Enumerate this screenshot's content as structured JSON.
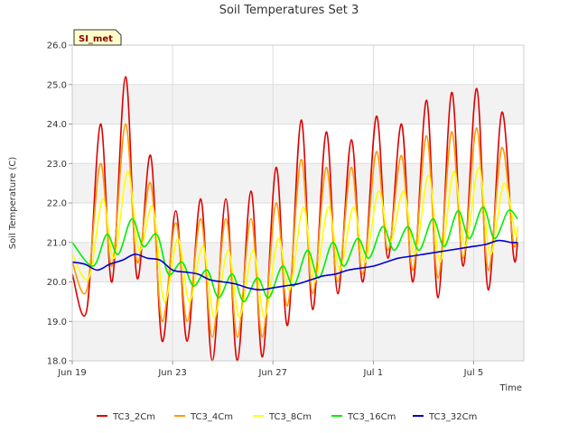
{
  "chart_data": {
    "type": "line",
    "title": "Soil Temperatures Set 3",
    "xlabel": "Time",
    "ylabel": "Soil Temperature (C)",
    "annotation": "SI_met",
    "xlim": [
      "2023-06-19",
      "2023-07-07"
    ],
    "ylim": [
      18.0,
      26.0
    ],
    "yticks": [
      18.0,
      19.0,
      20.0,
      21.0,
      22.0,
      23.0,
      24.0,
      25.0,
      26.0
    ],
    "yticklabels": [
      "18.0",
      "19.0",
      "20.0",
      "21.0",
      "22.0",
      "23.0",
      "24.0",
      "25.0",
      "26.0"
    ],
    "xticks": [
      "2023-06-19",
      "2023-06-23",
      "2023-06-27",
      "2023-07-01",
      "2023-07-05"
    ],
    "xticklabels": [
      "Jun 19",
      "Jun 23",
      "Jun 27",
      "Jul 1",
      "Jul 5"
    ],
    "grid": true,
    "background_bands": true,
    "legend_position": "bottom",
    "series": [
      {
        "name": "TC3_2Cm",
        "color": "#dd0000",
        "x": [
          "2023-06-19 00:00",
          "2023-06-19 14:00",
          "2023-06-20 03:00",
          "2023-06-20 14:00",
          "2023-06-21 03:00",
          "2023-06-21 14:00",
          "2023-06-22 03:00",
          "2023-06-22 14:00",
          "2023-06-23 03:00",
          "2023-06-23 14:00",
          "2023-06-24 03:00",
          "2023-06-24 14:00",
          "2023-06-25 03:00",
          "2023-06-25 14:00",
          "2023-06-26 03:00",
          "2023-06-26 14:00",
          "2023-06-27 03:00",
          "2023-06-27 14:00",
          "2023-06-28 03:00",
          "2023-06-28 14:00",
          "2023-06-29 03:00",
          "2023-06-29 14:00",
          "2023-06-30 03:00",
          "2023-06-30 14:00",
          "2023-07-01 03:00",
          "2023-07-01 14:00",
          "2023-07-02 03:00",
          "2023-07-02 14:00",
          "2023-07-03 03:00",
          "2023-07-03 14:00",
          "2023-07-04 03:00",
          "2023-07-04 14:00",
          "2023-07-05 03:00",
          "2023-07-05 14:00",
          "2023-07-06 03:00",
          "2023-07-06 14:00",
          "2023-07-06 18:00"
        ],
        "y": [
          20.2,
          19.3,
          24.0,
          20.0,
          25.2,
          20.1,
          23.2,
          18.5,
          21.8,
          18.5,
          22.1,
          18.0,
          22.1,
          18.0,
          22.3,
          18.1,
          22.9,
          18.9,
          24.1,
          19.3,
          23.8,
          19.7,
          23.6,
          20.0,
          24.2,
          20.6,
          24.0,
          20.0,
          24.6,
          19.6,
          24.8,
          20.4,
          24.9,
          19.8,
          24.3,
          20.7,
          21.0
        ]
      },
      {
        "name": "TC3_4Cm",
        "color": "#ff9900",
        "x": [
          "2023-06-19 00:00",
          "2023-06-19 14:00",
          "2023-06-20 03:00",
          "2023-06-20 14:00",
          "2023-06-21 03:00",
          "2023-06-21 14:00",
          "2023-06-22 03:00",
          "2023-06-22 14:00",
          "2023-06-23 03:00",
          "2023-06-23 14:00",
          "2023-06-24 03:00",
          "2023-06-24 14:00",
          "2023-06-25 03:00",
          "2023-06-25 14:00",
          "2023-06-26 03:00",
          "2023-06-26 14:00",
          "2023-06-27 03:00",
          "2023-06-27 14:00",
          "2023-06-28 03:00",
          "2023-06-28 14:00",
          "2023-06-29 03:00",
          "2023-06-29 14:00",
          "2023-06-30 03:00",
          "2023-06-30 14:00",
          "2023-07-01 03:00",
          "2023-07-01 14:00",
          "2023-07-02 03:00",
          "2023-07-02 14:00",
          "2023-07-03 03:00",
          "2023-07-03 14:00",
          "2023-07-04 03:00",
          "2023-07-04 14:00",
          "2023-07-05 03:00",
          "2023-07-05 14:00",
          "2023-07-06 03:00",
          "2023-07-06 14:00",
          "2023-07-06 18:00"
        ],
        "y": [
          20.5,
          19.8,
          23.0,
          20.4,
          24.0,
          20.5,
          22.5,
          19.0,
          21.5,
          19.0,
          21.6,
          18.6,
          21.6,
          18.6,
          21.6,
          18.6,
          22.0,
          19.4,
          23.1,
          19.7,
          22.9,
          20.0,
          22.9,
          20.2,
          23.3,
          20.8,
          23.2,
          20.3,
          23.7,
          20.1,
          23.8,
          20.6,
          23.9,
          20.3,
          23.4,
          21.0,
          21.3
        ]
      },
      {
        "name": "TC3_8Cm",
        "color": "#ffff00",
        "x": [
          "2023-06-19 00:00",
          "2023-06-19 16:00",
          "2023-06-20 05:00",
          "2023-06-20 16:00",
          "2023-06-21 05:00",
          "2023-06-21 16:00",
          "2023-06-22 05:00",
          "2023-06-22 16:00",
          "2023-06-23 05:00",
          "2023-06-23 16:00",
          "2023-06-24 05:00",
          "2023-06-24 16:00",
          "2023-06-25 05:00",
          "2023-06-25 16:00",
          "2023-06-26 05:00",
          "2023-06-26 16:00",
          "2023-06-27 05:00",
          "2023-06-27 16:00",
          "2023-06-28 05:00",
          "2023-06-28 16:00",
          "2023-06-29 05:00",
          "2023-06-29 16:00",
          "2023-06-30 05:00",
          "2023-06-30 16:00",
          "2023-07-01 05:00",
          "2023-07-01 16:00",
          "2023-07-02 05:00",
          "2023-07-02 16:00",
          "2023-07-03 05:00",
          "2023-07-03 16:00",
          "2023-07-04 05:00",
          "2023-07-04 16:00",
          "2023-07-05 05:00",
          "2023-07-05 16:00",
          "2023-07-06 05:00",
          "2023-07-06 16:00",
          "2023-07-06 18:00"
        ],
        "y": [
          20.7,
          20.1,
          22.1,
          20.6,
          22.8,
          20.8,
          21.9,
          19.5,
          21.1,
          19.5,
          20.9,
          19.1,
          20.8,
          19.1,
          20.8,
          19.1,
          21.1,
          19.8,
          21.9,
          20.0,
          21.9,
          20.3,
          21.9,
          20.5,
          22.3,
          21.0,
          22.3,
          20.7,
          22.7,
          20.5,
          22.8,
          20.9,
          22.9,
          20.7,
          22.5,
          21.2,
          21.4
        ]
      },
      {
        "name": "TC3_16Cm",
        "color": "#00ee00",
        "x": [
          "2023-06-19 00:00",
          "2023-06-19 20:00",
          "2023-06-20 09:00",
          "2023-06-20 20:00",
          "2023-06-21 09:00",
          "2023-06-21 20:00",
          "2023-06-22 09:00",
          "2023-06-22 20:00",
          "2023-06-23 09:00",
          "2023-06-23 20:00",
          "2023-06-24 09:00",
          "2023-06-24 20:00",
          "2023-06-25 09:00",
          "2023-06-25 20:00",
          "2023-06-26 09:00",
          "2023-06-26 20:00",
          "2023-06-27 09:00",
          "2023-06-27 20:00",
          "2023-06-28 09:00",
          "2023-06-28 20:00",
          "2023-06-29 09:00",
          "2023-06-29 20:00",
          "2023-06-30 09:00",
          "2023-06-30 20:00",
          "2023-07-01 09:00",
          "2023-07-01 20:00",
          "2023-07-02 09:00",
          "2023-07-02 20:00",
          "2023-07-03 09:00",
          "2023-07-03 20:00",
          "2023-07-04 09:00",
          "2023-07-04 20:00",
          "2023-07-05 09:00",
          "2023-07-05 20:00",
          "2023-07-06 09:00",
          "2023-07-06 18:00"
        ],
        "y": [
          21.0,
          20.4,
          21.2,
          20.7,
          21.6,
          20.9,
          21.2,
          20.2,
          20.5,
          19.9,
          20.3,
          19.6,
          20.2,
          19.5,
          20.1,
          19.6,
          20.4,
          19.9,
          20.8,
          20.1,
          21.0,
          20.4,
          21.1,
          20.6,
          21.4,
          20.8,
          21.4,
          20.8,
          21.6,
          20.9,
          21.8,
          21.1,
          21.9,
          21.1,
          21.8,
          21.6
        ]
      },
      {
        "name": "TC3_32Cm",
        "color": "#0000cc",
        "x": [
          "2023-06-19 00:00",
          "2023-06-19 12:00",
          "2023-06-20 00:00",
          "2023-06-20 12:00",
          "2023-06-21 00:00",
          "2023-06-21 12:00",
          "2023-06-22 00:00",
          "2023-06-22 12:00",
          "2023-06-23 00:00",
          "2023-06-23 12:00",
          "2023-06-24 00:00",
          "2023-06-24 12:00",
          "2023-06-25 00:00",
          "2023-06-25 12:00",
          "2023-06-26 00:00",
          "2023-06-26 12:00",
          "2023-06-27 00:00",
          "2023-06-27 12:00",
          "2023-06-28 00:00",
          "2023-06-28 12:00",
          "2023-06-29 00:00",
          "2023-06-29 12:00",
          "2023-06-30 00:00",
          "2023-06-30 12:00",
          "2023-07-01 00:00",
          "2023-07-01 12:00",
          "2023-07-02 00:00",
          "2023-07-02 12:00",
          "2023-07-03 00:00",
          "2023-07-03 12:00",
          "2023-07-04 00:00",
          "2023-07-04 12:00",
          "2023-07-05 00:00",
          "2023-07-05 12:00",
          "2023-07-06 00:00",
          "2023-07-06 12:00",
          "2023-07-06 18:00"
        ],
        "y": [
          20.5,
          20.45,
          20.3,
          20.45,
          20.55,
          20.7,
          20.6,
          20.55,
          20.3,
          20.25,
          20.2,
          20.05,
          20.0,
          19.95,
          19.85,
          19.8,
          19.85,
          19.9,
          19.95,
          20.05,
          20.15,
          20.2,
          20.3,
          20.35,
          20.4,
          20.5,
          20.6,
          20.65,
          20.7,
          20.75,
          20.8,
          20.85,
          20.9,
          20.95,
          21.05,
          21.0,
          21.0
        ]
      }
    ]
  }
}
